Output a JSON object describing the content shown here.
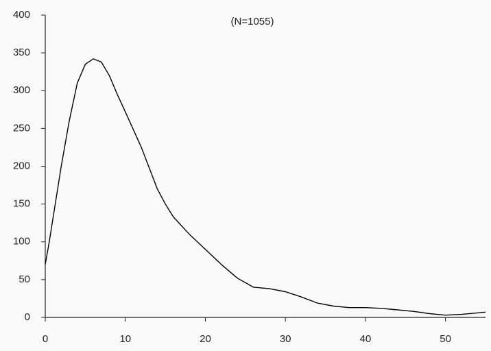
{
  "chart_data": {
    "type": "line",
    "annotation": "(N=1055)",
    "x": [
      0,
      0.5,
      2,
      3,
      4,
      5,
      6,
      7,
      8,
      9,
      10,
      12,
      14,
      15,
      16,
      18,
      20,
      22,
      24,
      26,
      28,
      30,
      32,
      34,
      36,
      38,
      40,
      42,
      44,
      46,
      48,
      50,
      52,
      54,
      55
    ],
    "y": [
      70,
      100,
      200,
      260,
      310,
      335,
      342,
      338,
      320,
      295,
      272,
      225,
      170,
      150,
      133,
      110,
      90,
      70,
      52,
      40,
      38,
      34,
      27,
      19,
      15,
      13,
      13,
      12,
      10,
      8,
      5,
      3,
      4,
      6,
      7
    ],
    "color": "#000000",
    "xlim": [
      0,
      55
    ],
    "xticks": [
      0,
      10,
      20,
      30,
      40,
      50
    ],
    "ylim": [
      0,
      400
    ],
    "yticks": [
      0,
      50,
      100,
      150,
      200,
      250,
      300,
      350,
      400
    ]
  }
}
